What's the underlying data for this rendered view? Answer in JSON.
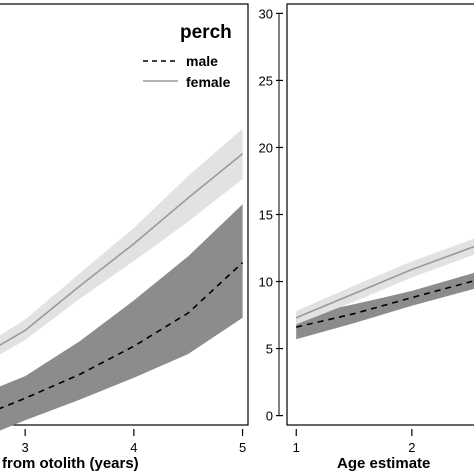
{
  "chart_data": [
    {
      "type": "line",
      "title": "perch",
      "xlabel": "from otolith (years)",
      "ylabel": "",
      "xlim": [
        2.75,
        5.05
      ],
      "ylim": [
        4.0,
        30.7
      ],
      "xticks": [
        3,
        4,
        5
      ],
      "grid": false,
      "legend_position": "top-right",
      "series": [
        {
          "name": "male",
          "style": "dashed",
          "color": "#000000",
          "band_color": "#8c8c8c",
          "x": [
            2.75,
            3.0,
            3.5,
            4.0,
            4.5,
            5.0
          ],
          "y": [
            5.0,
            5.7,
            7.2,
            9.0,
            11.1,
            14.3
          ],
          "lower": [
            3.6,
            4.3,
            5.6,
            7.0,
            8.5,
            10.8
          ],
          "upper": [
            6.4,
            7.1,
            9.3,
            11.9,
            14.7,
            18.0
          ]
        },
        {
          "name": "female",
          "style": "solid",
          "color": "#9a9a9a",
          "band_color": "#e2e2e2",
          "x": [
            2.75,
            3.0,
            3.5,
            4.0,
            4.5,
            5.0
          ],
          "y": [
            9.0,
            10.0,
            12.8,
            15.5,
            18.4,
            21.2
          ],
          "lower": [
            8.4,
            9.4,
            12.0,
            14.4,
            16.9,
            19.6
          ],
          "upper": [
            9.6,
            10.7,
            13.6,
            16.5,
            19.8,
            22.8
          ]
        }
      ]
    },
    {
      "type": "line",
      "title": "",
      "xlabel": "Age estimate",
      "ylabel": "",
      "xlim": [
        0.92,
        2.65
      ],
      "ylim": [
        -0.7,
        30.7
      ],
      "xticks": [
        1,
        2
      ],
      "yticks": [
        0,
        5,
        10,
        15,
        20,
        25,
        30
      ],
      "grid": false,
      "series": [
        {
          "style": "dashed",
          "color": "#000000",
          "band_color": "#8c8c8c",
          "x": [
            1.0,
            1.5,
            2.0,
            2.6
          ],
          "y": [
            6.6,
            7.6,
            8.8,
            10.2
          ],
          "lower": [
            5.7,
            6.9,
            8.2,
            9.6
          ],
          "upper": [
            7.4,
            8.3,
            9.3,
            10.8
          ]
        },
        {
          "style": "solid",
          "color": "#9a9a9a",
          "band_color": "#e2e2e2",
          "x": [
            1.0,
            1.5,
            2.0,
            2.6
          ],
          "y": [
            7.3,
            9.1,
            10.9,
            12.8
          ],
          "lower": [
            6.8,
            8.5,
            10.3,
            12.2
          ],
          "upper": [
            7.8,
            9.7,
            11.5,
            13.4
          ]
        }
      ]
    }
  ]
}
